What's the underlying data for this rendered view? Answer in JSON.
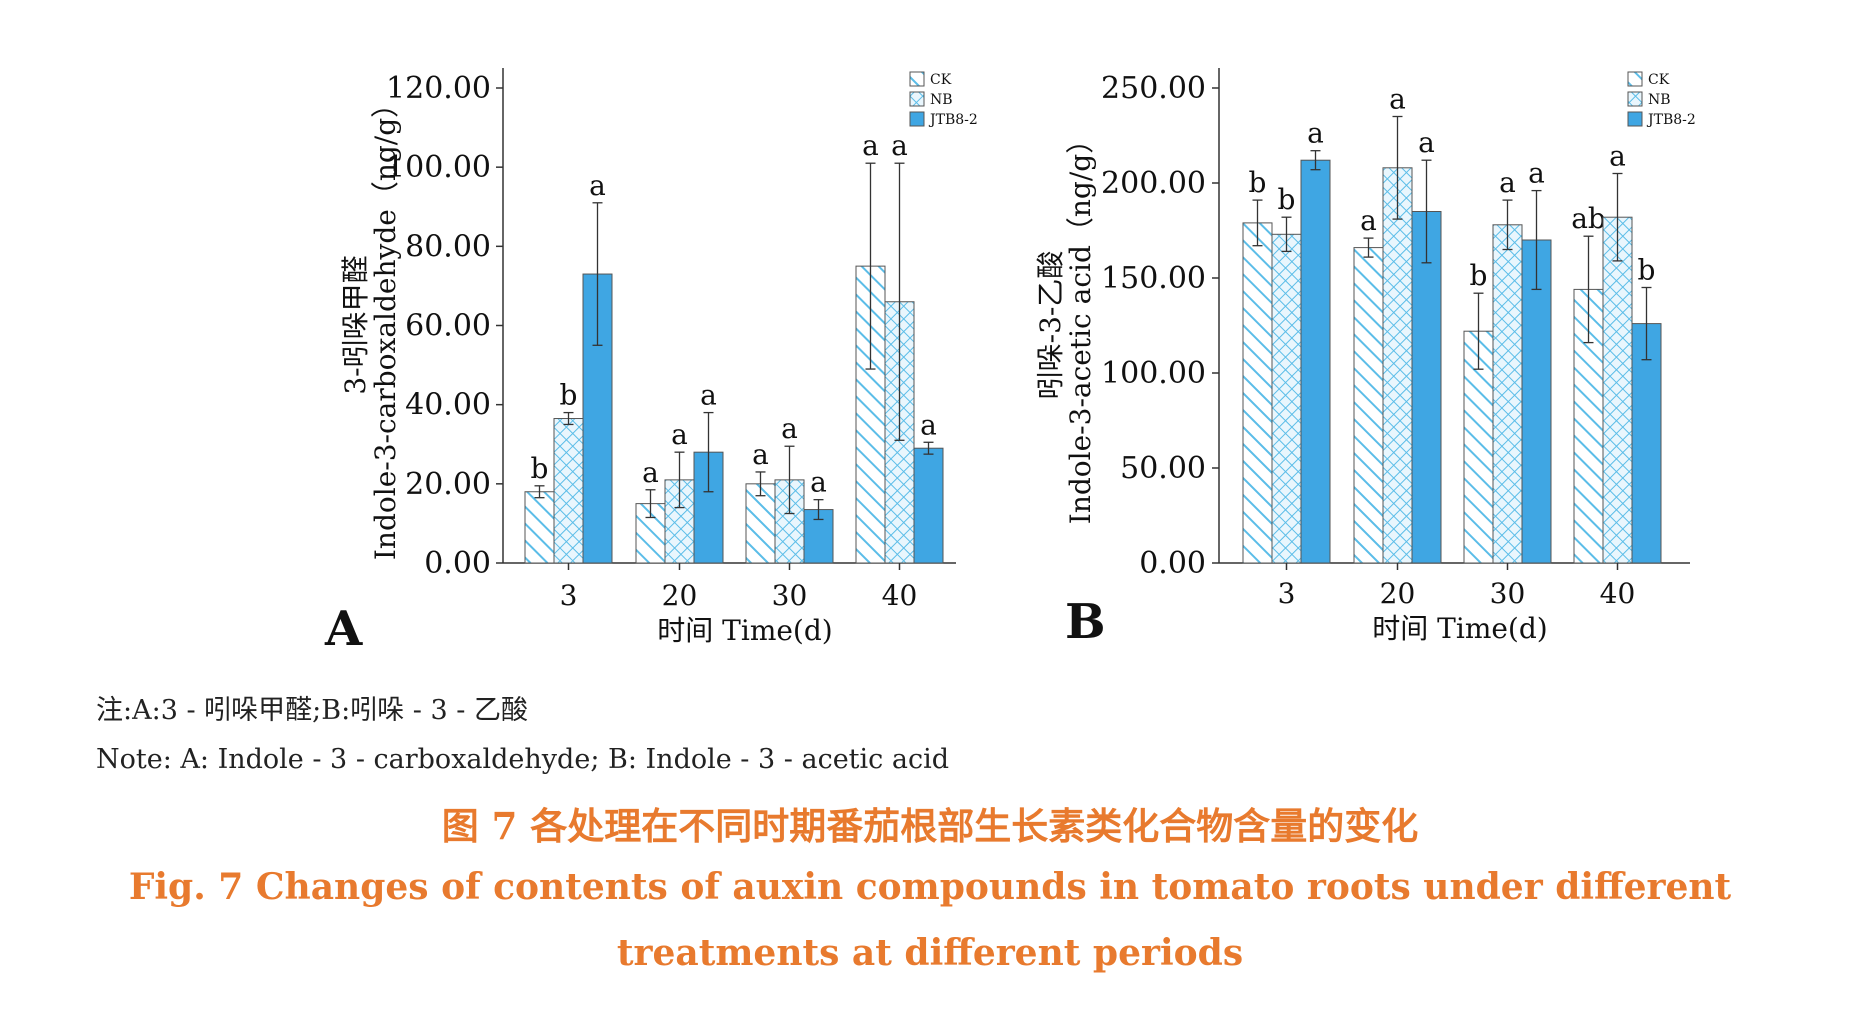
{
  "colors": {
    "ck": "#5bbde8",
    "nb": "#5bbde8",
    "jtb": "#3fa6e3",
    "caption": "#e87a2e"
  },
  "chart_data": [
    {
      "panel": "A",
      "type": "bar",
      "ylabel_cn": "3-吲哚甲醛",
      "ylabel_en": "Indole-3-carboxaldehyde（ng/g）",
      "xlabel": "时间 Time(d)",
      "categories": [
        "3",
        "20",
        "30",
        "40"
      ],
      "ylim": [
        0,
        120
      ],
      "yticks": [
        "0.00",
        "20.00",
        "40.00",
        "60.00",
        "80.00",
        "100.00",
        "120.00"
      ],
      "legend": "top-right",
      "series": [
        {
          "name": "CK",
          "pattern": "diag",
          "values": [
            18,
            15,
            20,
            75
          ],
          "errors": [
            1.5,
            3.5,
            3.0,
            26
          ],
          "letters": [
            "b",
            "a",
            "a",
            "a"
          ]
        },
        {
          "name": "NB",
          "pattern": "cross",
          "values": [
            36.5,
            21,
            21,
            66
          ],
          "errors": [
            1.5,
            7,
            8.5,
            35
          ],
          "letters": [
            "b",
            "a",
            "a",
            "a"
          ]
        },
        {
          "name": "JTB8-2",
          "pattern": "solid",
          "values": [
            73,
            28,
            13.5,
            29
          ],
          "errors": [
            18,
            10,
            2.5,
            1.5
          ],
          "letters": [
            "a",
            "a",
            "a",
            "a"
          ]
        }
      ]
    },
    {
      "panel": "B",
      "type": "bar",
      "ylabel_cn": "吲哚-3-乙酸",
      "ylabel_en": "Indole-3-acetic acid（ng/g）",
      "xlabel": "时间 Time(d)",
      "categories": [
        "3",
        "20",
        "30",
        "40"
      ],
      "ylim": [
        0,
        250
      ],
      "yticks": [
        "0.00",
        "50.00",
        "100.00",
        "150.00",
        "200.00",
        "250.00"
      ],
      "legend": "top-right",
      "series": [
        {
          "name": "CK",
          "pattern": "diag",
          "values": [
            179,
            166,
            122,
            144
          ],
          "errors": [
            12,
            5,
            20,
            28
          ],
          "letters": [
            "b",
            "a",
            "b",
            "ab"
          ]
        },
        {
          "name": "NB",
          "pattern": "cross",
          "values": [
            173,
            208,
            178,
            182
          ],
          "errors": [
            9,
            27,
            13,
            23
          ],
          "letters": [
            "b",
            "a",
            "a",
            "a"
          ]
        },
        {
          "name": "JTB8-2",
          "pattern": "solid",
          "values": [
            212,
            185,
            170,
            126
          ],
          "errors": [
            5,
            27,
            26,
            19
          ],
          "letters": [
            "a",
            "a",
            "a",
            "b"
          ]
        }
      ]
    }
  ],
  "captions": {
    "note_cn": "注:A:3 - 吲哚甲醛;B:吲哚 - 3 - 乙酸",
    "note_en": "Note: A: Indole - 3 - carboxaldehyde; B: Indole - 3 - acetic acid",
    "title_cn": "图 7    各处理在不同时期番茄根部生长素类化合物含量的变化",
    "title_en_1": "Fig. 7    Changes of contents of auxin compounds in tomato roots under different",
    "title_en_2": "treatments at different periods"
  }
}
